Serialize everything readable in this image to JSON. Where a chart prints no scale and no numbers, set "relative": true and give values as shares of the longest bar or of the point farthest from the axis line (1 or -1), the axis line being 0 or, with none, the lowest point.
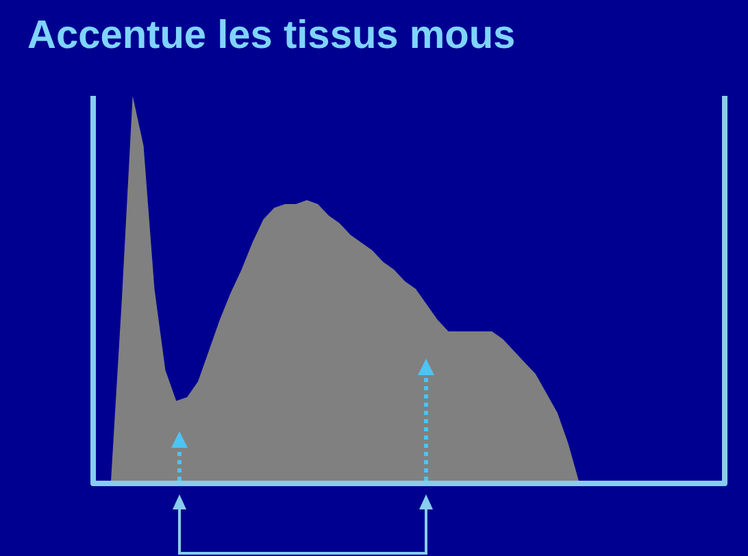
{
  "chart_data": {
    "type": "area",
    "title": "Accentue les tissus mous",
    "relative": true,
    "legend": false,
    "categories": [
      null,
      null,
      null,
      null,
      null,
      null,
      null,
      null,
      null,
      null,
      null,
      null,
      null,
      null,
      null,
      null,
      null,
      null,
      null,
      null,
      null,
      null,
      null,
      null,
      null,
      null,
      null,
      null,
      null,
      null,
      null,
      null,
      null,
      null,
      null,
      null,
      null,
      null,
      null,
      null,
      null,
      null,
      null,
      null,
      null,
      null,
      null,
      null,
      null,
      null,
      null,
      null,
      null,
      null,
      null,
      null,
      null,
      null
    ],
    "series": [
      {
        "color": "#808080",
        "values": [
          0,
          0,
          0.47,
          1,
          0.87,
          0.5,
          0.29,
          0.21,
          0.22,
          0.26,
          0.34,
          0.42,
          0.49,
          0.55,
          0.62,
          0.68,
          0.71,
          0.72,
          0.72,
          0.73,
          0.72,
          0.69,
          0.67,
          0.64,
          0.62,
          0.6,
          0.57,
          0.55,
          0.52,
          0.5,
          0.46,
          0.42,
          0.39,
          0.39,
          0.39,
          0.39,
          0.39,
          0.37,
          0.34,
          0.31,
          0.28,
          0.23,
          0.18,
          0.1,
          0,
          0,
          0,
          0,
          0,
          0,
          0,
          0,
          0,
          0,
          0,
          0,
          0,
          0
        ]
      }
    ]
  }
}
